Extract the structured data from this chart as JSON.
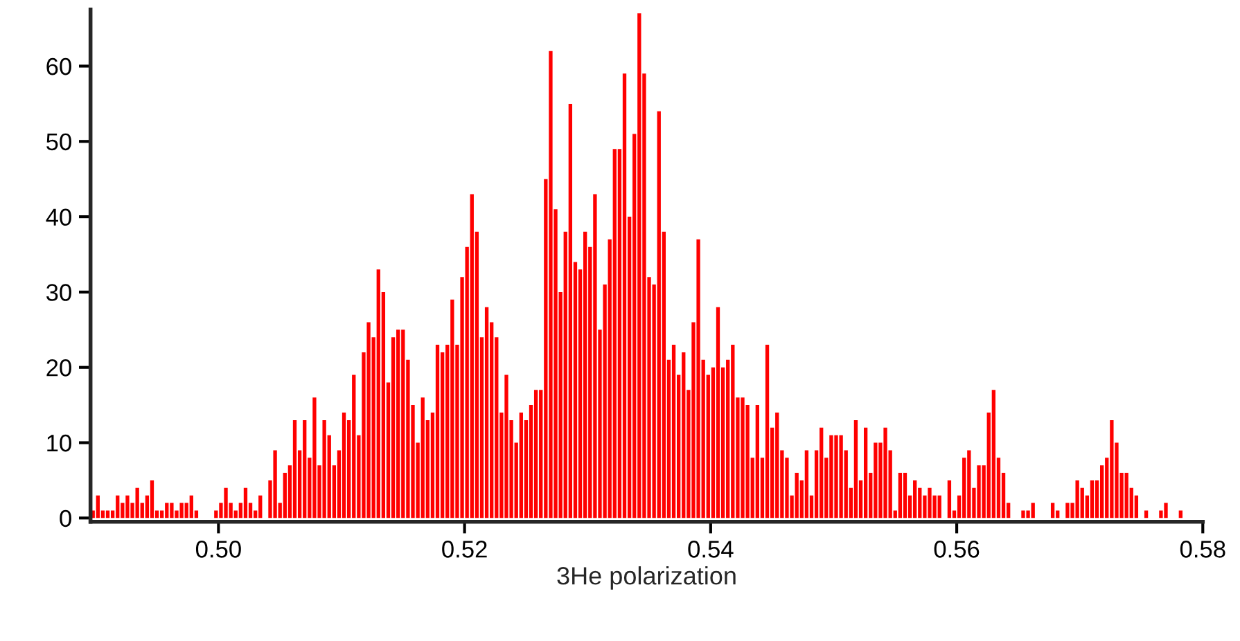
{
  "chart_data": {
    "type": "histogram",
    "xlabel": "3He polarization",
    "bins": [
      0.4896,
      0.49,
      0.4904,
      0.4908,
      0.4912,
      0.4916,
      0.492,
      0.4924,
      0.4928,
      0.4932,
      0.4936,
      0.494,
      0.4944,
      0.4948,
      0.4952,
      0.4956,
      0.496,
      0.4964,
      0.4968,
      0.4972,
      0.4976,
      0.498,
      0.4984,
      0.4988,
      0.4992,
      0.4996,
      0.5,
      0.5004,
      0.5008,
      0.5012,
      0.5016,
      0.502,
      0.5024,
      0.5028,
      0.5032,
      0.5036,
      0.504,
      0.5044,
      0.5048,
      0.5052,
      0.5056,
      0.506,
      0.5064,
      0.5068,
      0.5072,
      0.5076,
      0.508,
      0.5084,
      0.5088,
      0.5092,
      0.5096,
      0.51,
      0.5104,
      0.5108,
      0.5112,
      0.5116,
      0.512,
      0.5124,
      0.5128,
      0.5132,
      0.5136,
      0.514,
      0.5144,
      0.5148,
      0.5152,
      0.5156,
      0.516,
      0.5164,
      0.5168,
      0.5172,
      0.5176,
      0.518,
      0.5184,
      0.5188,
      0.5192,
      0.5196,
      0.52,
      0.5204,
      0.5208,
      0.5212,
      0.5216,
      0.522,
      0.5224,
      0.5228,
      0.5232,
      0.5236,
      0.524,
      0.5244,
      0.5248,
      0.5252,
      0.5256,
      0.526,
      0.5264,
      0.5268,
      0.5272,
      0.5276,
      0.528,
      0.5284,
      0.5288,
      0.5292,
      0.5296,
      0.53,
      0.5304,
      0.5308,
      0.5312,
      0.5316,
      0.532,
      0.5324,
      0.5328,
      0.5332,
      0.5336,
      0.534,
      0.5344,
      0.5348,
      0.5352,
      0.5356,
      0.536,
      0.5364,
      0.5368,
      0.5372,
      0.5376,
      0.538,
      0.5384,
      0.5388,
      0.5392,
      0.5396,
      0.54,
      0.5404,
      0.5408,
      0.5412,
      0.5416,
      0.542,
      0.5424,
      0.5428,
      0.5432,
      0.5436,
      0.544,
      0.5444,
      0.5448,
      0.5452,
      0.5456,
      0.546,
      0.5464,
      0.5468,
      0.5472,
      0.5476,
      0.548,
      0.5484,
      0.5488,
      0.5492,
      0.5496,
      0.55,
      0.5504,
      0.5508,
      0.5512,
      0.5516,
      0.552,
      0.5524,
      0.5528,
      0.5532,
      0.5536,
      0.554,
      0.5544,
      0.5548,
      0.5552,
      0.5556,
      0.556,
      0.5564,
      0.5568,
      0.5572,
      0.5576,
      0.558,
      0.5584,
      0.5588,
      0.5592,
      0.5596,
      0.56,
      0.5604,
      0.5608,
      0.5612,
      0.5616,
      0.562,
      0.5624,
      0.5628,
      0.5632,
      0.5636,
      0.564,
      0.5644,
      0.5648,
      0.5652,
      0.5656,
      0.566,
      0.5664,
      0.5668,
      0.5672,
      0.5676,
      0.568,
      0.5684,
      0.5688,
      0.5692,
      0.5696,
      0.57,
      0.5704,
      0.5708,
      0.5712,
      0.5716,
      0.572,
      0.5724,
      0.5728,
      0.5732,
      0.5736,
      0.574,
      0.5744,
      0.5748,
      0.5752,
      0.5756,
      0.576,
      0.5764,
      0.5768,
      0.5772,
      0.5776,
      0.578,
      0.5784,
      0.5788,
      0.5792,
      0.5796
    ],
    "values": [
      1,
      3,
      1,
      1,
      1,
      3,
      2,
      3,
      2,
      4,
      2,
      3,
      5,
      1,
      1,
      2,
      2,
      1,
      2,
      2,
      3,
      1,
      0,
      0,
      0,
      1,
      2,
      4,
      2,
      1,
      2,
      4,
      2,
      1,
      3,
      0,
      5,
      9,
      2,
      6,
      7,
      13,
      9,
      13,
      8,
      16,
      7,
      13,
      11,
      7,
      9,
      14,
      13,
      19,
      11,
      22,
      26,
      24,
      33,
      30,
      18,
      24,
      25,
      25,
      21,
      15,
      10,
      16,
      13,
      14,
      23,
      22,
      23,
      29,
      23,
      32,
      36,
      43,
      38,
      24,
      28,
      26,
      24,
      14,
      19,
      13,
      10,
      14,
      13,
      15,
      17,
      17,
      45,
      62,
      41,
      30,
      38,
      55,
      34,
      33,
      38,
      36,
      43,
      25,
      31,
      37,
      49,
      49,
      59,
      40,
      51,
      67,
      59,
      32,
      31,
      54,
      38,
      21,
      23,
      19,
      22,
      17,
      26,
      37,
      21,
      19,
      20,
      28,
      20,
      21,
      23,
      16,
      16,
      15,
      8,
      15,
      8,
      23,
      12,
      14,
      9,
      8,
      3,
      6,
      5,
      9,
      3,
      9,
      12,
      8,
      11,
      11,
      11,
      9,
      4,
      13,
      5,
      12,
      6,
      10,
      10,
      12,
      9,
      1,
      6,
      6,
      3,
      5,
      4,
      3,
      4,
      3,
      3,
      0,
      5,
      1,
      3,
      8,
      9,
      4,
      7,
      7,
      14,
      17,
      8,
      6,
      2,
      0,
      0,
      1,
      1,
      2,
      0,
      0,
      0,
      2,
      1,
      0,
      2,
      2,
      5,
      4,
      3,
      5,
      5,
      7,
      8,
      13,
      10,
      6,
      6,
      4,
      3,
      0,
      1,
      0,
      0,
      1,
      2,
      0,
      0,
      1,
      0,
      0,
      0
    ],
    "color": "#ff0000",
    "xlim": [
      0.4896,
      0.58
    ],
    "xticks": [
      {
        "value": 0.5,
        "label": "0.50"
      },
      0.52,
      0.54,
      0.56,
      0.58
    ],
    "ylim": [
      -0.5,
      67.5
    ],
    "yticks": [
      0,
      10,
      20,
      30,
      40,
      50,
      60
    ],
    "grid": false
  }
}
